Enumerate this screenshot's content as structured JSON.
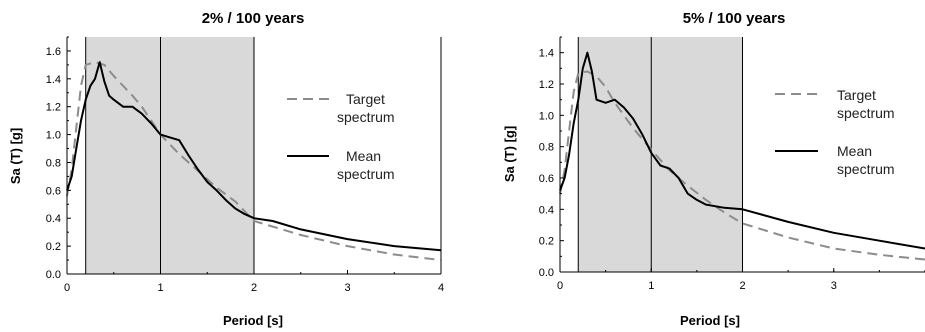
{
  "chart_data": [
    {
      "type": "line",
      "title": "2% / 100 years",
      "xlabel": "Period [s]",
      "ylabel": "Sa (T) [g]",
      "xlim": [
        0,
        4
      ],
      "ylim": [
        0,
        1.7
      ],
      "xticks": [
        0,
        1,
        2,
        3,
        4
      ],
      "yticks": [
        0,
        0.2,
        0.4,
        0.6,
        0.8,
        1.0,
        1.2,
        1.4,
        1.6
      ],
      "ytick_labels": [
        "0.0",
        "0.2",
        "0.4",
        "0.6",
        "0.8",
        "1.0",
        "1.2",
        "1.4",
        "1.6"
      ],
      "shaded_range": [
        0.2,
        2.0
      ],
      "vertical_lines": [
        1.0,
        2.0
      ],
      "legend_position": "right",
      "series": [
        {
          "name": "Target spectrum",
          "style": "dashed",
          "color": "#8c8c8c",
          "points": [
            [
              0,
              0.56
            ],
            [
              0.05,
              0.75
            ],
            [
              0.1,
              1.05
            ],
            [
              0.15,
              1.35
            ],
            [
              0.2,
              1.5
            ],
            [
              0.3,
              1.52
            ],
            [
              0.4,
              1.5
            ],
            [
              0.5,
              1.42
            ],
            [
              0.6,
              1.35
            ],
            [
              0.7,
              1.28
            ],
            [
              0.8,
              1.2
            ],
            [
              0.9,
              1.1
            ],
            [
              1.0,
              1.0
            ],
            [
              1.2,
              0.86
            ],
            [
              1.4,
              0.74
            ],
            [
              1.6,
              0.62
            ],
            [
              1.8,
              0.52
            ],
            [
              2.0,
              0.38
            ],
            [
              2.5,
              0.28
            ],
            [
              3.0,
              0.2
            ],
            [
              3.5,
              0.14
            ],
            [
              4.0,
              0.1
            ]
          ]
        },
        {
          "name": "Mean spectrum",
          "style": "solid",
          "color": "#000000",
          "points": [
            [
              0,
              0.6
            ],
            [
              0.05,
              0.7
            ],
            [
              0.1,
              0.9
            ],
            [
              0.15,
              1.1
            ],
            [
              0.2,
              1.25
            ],
            [
              0.25,
              1.35
            ],
            [
              0.3,
              1.4
            ],
            [
              0.35,
              1.52
            ],
            [
              0.4,
              1.38
            ],
            [
              0.45,
              1.28
            ],
            [
              0.5,
              1.25
            ],
            [
              0.6,
              1.2
            ],
            [
              0.7,
              1.2
            ],
            [
              0.8,
              1.15
            ],
            [
              0.9,
              1.08
            ],
            [
              1.0,
              1.0
            ],
            [
              1.1,
              0.98
            ],
            [
              1.2,
              0.96
            ],
            [
              1.3,
              0.85
            ],
            [
              1.4,
              0.75
            ],
            [
              1.5,
              0.66
            ],
            [
              1.6,
              0.6
            ],
            [
              1.7,
              0.53
            ],
            [
              1.8,
              0.47
            ],
            [
              1.9,
              0.43
            ],
            [
              2.0,
              0.4
            ],
            [
              2.2,
              0.38
            ],
            [
              2.5,
              0.32
            ],
            [
              3.0,
              0.25
            ],
            [
              3.5,
              0.2
            ],
            [
              4.0,
              0.17
            ]
          ]
        }
      ]
    },
    {
      "type": "line",
      "title": "5% / 100 years",
      "xlabel": "Period [s]",
      "ylabel": "Sa (T) [g]",
      "xlim": [
        0,
        4
      ],
      "ylim": [
        0,
        1.5
      ],
      "xticks": [
        0,
        1,
        2,
        3
      ],
      "yticks": [
        0,
        0.2,
        0.4,
        0.6,
        0.8,
        1.0,
        1.2,
        1.4
      ],
      "ytick_labels": [
        "0.0",
        "0.2",
        "0.4",
        "0.6",
        "0.8",
        "1.0",
        "1.2",
        "1.4"
      ],
      "shaded_range": [
        0.2,
        2.0
      ],
      "vertical_lines": [
        1.0,
        2.0
      ],
      "legend_position": "right",
      "series": [
        {
          "name": "Target spectrum",
          "style": "dashed",
          "color": "#8c8c8c",
          "points": [
            [
              0,
              0.5
            ],
            [
              0.05,
              0.65
            ],
            [
              0.1,
              0.9
            ],
            [
              0.15,
              1.15
            ],
            [
              0.2,
              1.27
            ],
            [
              0.3,
              1.28
            ],
            [
              0.4,
              1.25
            ],
            [
              0.5,
              1.18
            ],
            [
              0.6,
              1.08
            ],
            [
              0.7,
              1.0
            ],
            [
              0.8,
              0.92
            ],
            [
              0.9,
              0.85
            ],
            [
              1.0,
              0.78
            ],
            [
              1.2,
              0.65
            ],
            [
              1.4,
              0.55
            ],
            [
              1.6,
              0.46
            ],
            [
              1.8,
              0.38
            ],
            [
              2.0,
              0.31
            ],
            [
              2.5,
              0.22
            ],
            [
              3.0,
              0.15
            ],
            [
              3.5,
              0.11
            ],
            [
              4.0,
              0.08
            ]
          ]
        },
        {
          "name": "Mean spectrum",
          "style": "solid",
          "color": "#000000",
          "points": [
            [
              0,
              0.52
            ],
            [
              0.05,
              0.6
            ],
            [
              0.1,
              0.75
            ],
            [
              0.15,
              0.95
            ],
            [
              0.2,
              1.1
            ],
            [
              0.25,
              1.3
            ],
            [
              0.3,
              1.4
            ],
            [
              0.35,
              1.28
            ],
            [
              0.4,
              1.1
            ],
            [
              0.5,
              1.08
            ],
            [
              0.6,
              1.1
            ],
            [
              0.7,
              1.05
            ],
            [
              0.8,
              0.98
            ],
            [
              0.9,
              0.88
            ],
            [
              1.0,
              0.76
            ],
            [
              1.1,
              0.68
            ],
            [
              1.2,
              0.66
            ],
            [
              1.3,
              0.6
            ],
            [
              1.4,
              0.5
            ],
            [
              1.5,
              0.46
            ],
            [
              1.6,
              0.43
            ],
            [
              1.7,
              0.42
            ],
            [
              1.8,
              0.41
            ],
            [
              2.0,
              0.4
            ],
            [
              2.5,
              0.32
            ],
            [
              3.0,
              0.25
            ],
            [
              3.5,
              0.2
            ],
            [
              4.0,
              0.15
            ]
          ]
        }
      ]
    }
  ]
}
